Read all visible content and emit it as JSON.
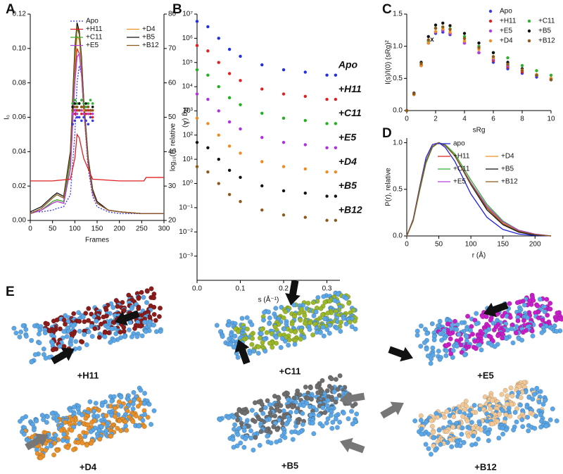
{
  "chart_data": [
    {
      "panel_label": "A",
      "type": "line",
      "xlabel": "Frames",
      "ylabel": "I₀",
      "y2label": "Rg (Å)",
      "x": [
        0,
        25,
        50,
        60,
        75,
        90,
        100,
        105,
        110,
        115,
        120,
        130,
        140,
        150,
        175,
        200,
        250,
        300
      ],
      "xlim": [
        0,
        300
      ],
      "xticks": [
        0,
        50,
        100,
        150,
        200,
        250,
        300
      ],
      "ylim": [
        0,
        0.12
      ],
      "yticks": [
        {
          "value": 0,
          "label": "0.00"
        },
        0.02,
        0.04,
        0.06,
        0.08,
        {
          "value": 0.1,
          "label": "0.10"
        },
        0.12
      ],
      "y2lim": [
        20,
        80
      ],
      "y2ticks": [
        20,
        30,
        40,
        50,
        60,
        70,
        80
      ],
      "legend": "top-right",
      "series": [
        {
          "name": "Apo",
          "color": "#3a3ae0",
          "dash": true,
          "values": [
            0.005,
            0.005,
            0.006,
            0.007,
            0.008,
            0.015,
            0.05,
            0.08,
            0.09,
            0.085,
            0.065,
            0.03,
            0.014,
            0.008,
            0.005,
            0.004,
            0.004,
            0.004
          ]
        },
        {
          "name": "+H11",
          "color": "#e02020",
          "values": [
            0.004,
            0.006,
            0.01,
            0.011,
            0.01,
            0.03,
            0.085,
            0.1,
            0.097,
            0.085,
            0.065,
            0.033,
            0.016,
            0.01,
            0.006,
            0.005,
            0.004,
            0.004
          ]
        },
        {
          "name": "+D4",
          "color": "#f09020",
          "values": [
            0.004,
            0.006,
            0.011,
            0.012,
            0.011,
            0.035,
            0.09,
            0.107,
            0.105,
            0.09,
            0.068,
            0.035,
            0.017,
            0.01,
            0.006,
            0.005,
            0.004,
            0.004
          ]
        },
        {
          "name": "+C11",
          "color": "#30b030",
          "values": [
            0.004,
            0.006,
            0.011,
            0.012,
            0.011,
            0.035,
            0.095,
            0.112,
            0.108,
            0.092,
            0.07,
            0.036,
            0.018,
            0.01,
            0.006,
            0.005,
            0.004,
            0.004
          ]
        },
        {
          "name": "+B5",
          "color": "#111111",
          "values": [
            0.005,
            0.008,
            0.014,
            0.016,
            0.014,
            0.04,
            0.1,
            0.115,
            0.11,
            0.095,
            0.07,
            0.036,
            0.018,
            0.011,
            0.006,
            0.005,
            0.004,
            0.004
          ]
        },
        {
          "name": "+E5",
          "color": "#b040e0",
          "values": [
            0.004,
            0.006,
            0.01,
            0.011,
            0.01,
            0.03,
            0.08,
            0.095,
            0.097,
            0.085,
            0.065,
            0.033,
            0.016,
            0.01,
            0.006,
            0.005,
            0.004,
            0.004
          ]
        },
        {
          "name": "+B12",
          "color": "#8b5a1a",
          "values": [
            0.004,
            0.007,
            0.013,
            0.015,
            0.013,
            0.038,
            0.097,
            0.113,
            0.108,
            0.093,
            0.069,
            0.035,
            0.017,
            0.01,
            0.006,
            0.005,
            0.004,
            0.004
          ]
        },
        {
          "name": "+H11",
          "color": "#e02020",
          "axis": "y2",
          "x": [
            0,
            50,
            90,
            100,
            105,
            110,
            120,
            140,
            200,
            255,
            260,
            300
          ],
          "values": [
            31.5,
            31.5,
            32,
            38,
            45,
            44,
            38,
            32,
            31.5,
            31.5,
            32.5,
            32.5
          ]
        },
        {
          "name": "Apo",
          "color": "#3a3ae0",
          "axis": "y2",
          "markers": true,
          "x": [
            95,
            100,
            105,
            110,
            115,
            120,
            125,
            130,
            135,
            140
          ],
          "values": [
            48,
            49,
            50,
            50,
            49,
            50,
            49,
            48,
            50,
            49
          ]
        },
        {
          "name": "+H11",
          "color": "#e02020",
          "axis": "y2",
          "markers": true,
          "x": [
            95,
            100,
            105,
            110,
            115,
            120,
            125,
            130,
            135,
            140
          ],
          "values": [
            52,
            51,
            52,
            52,
            51,
            52,
            51,
            52,
            51,
            50
          ]
        },
        {
          "name": "+D4",
          "color": "#f09020",
          "axis": "y2",
          "markers": true,
          "x": [
            95,
            100,
            105,
            110,
            115,
            120,
            125,
            130,
            135,
            140
          ],
          "values": [
            53,
            52,
            53,
            52,
            53,
            52,
            52,
            51,
            52,
            52
          ]
        },
        {
          "name": "+C11",
          "color": "#30b030",
          "axis": "y2",
          "markers": true,
          "x": [
            95,
            100,
            105,
            110,
            115,
            120,
            125,
            130,
            135,
            140
          ],
          "values": [
            54,
            55,
            54,
            54,
            55,
            54,
            53,
            54,
            55,
            54
          ]
        },
        {
          "name": "+B5",
          "color": "#111111",
          "axis": "y2",
          "markers": true,
          "x": [
            95,
            100,
            105,
            110,
            115,
            120,
            125,
            130,
            135,
            140
          ],
          "values": [
            53,
            54,
            53,
            54,
            53,
            53,
            54,
            53,
            52,
            53
          ]
        },
        {
          "name": "+E5",
          "color": "#b040e0",
          "axis": "y2",
          "markers": true,
          "x": [
            95,
            100,
            105,
            110,
            115,
            120,
            125,
            130,
            135,
            140
          ],
          "values": [
            51,
            52,
            51,
            52,
            52,
            51,
            52,
            51,
            52,
            51
          ]
        },
        {
          "name": "+B12",
          "color": "#8b5a1a",
          "axis": "y2",
          "markers": true,
          "x": [
            95,
            100,
            105,
            110,
            115,
            120,
            125,
            130,
            135,
            140
          ],
          "values": [
            52,
            53,
            53,
            52,
            53,
            53,
            52,
            53,
            52,
            52
          ]
        }
      ]
    },
    {
      "panel_label": "B",
      "type": "scatter",
      "xlabel": "s (Å⁻¹)",
      "ylabel": "log₁₀(I), relative",
      "log_y": true,
      "series_labels": true,
      "x": [
        0,
        0.025,
        0.05,
        0.075,
        0.1,
        0.15,
        0.2,
        0.25,
        0.3,
        0.32
      ],
      "xlim": [
        0,
        0.33
      ],
      "xticks": [
        {
          "value": 0,
          "label": "0.0"
        },
        0.1,
        0.2,
        0.3
      ],
      "ylim": [
        0.0001,
        10000000
      ],
      "yticks": [
        {
          "value": 10000000,
          "label": "10⁷"
        },
        {
          "value": 1000000,
          "label": "10⁶"
        },
        {
          "value": 100000,
          "label": "10⁵"
        },
        {
          "value": 10000,
          "label": "10⁴"
        },
        {
          "value": 1000,
          "label": "10³"
        },
        {
          "value": 100,
          "label": "10²"
        },
        {
          "value": 10,
          "label": "10¹"
        },
        {
          "value": 1,
          "label": "10⁰"
        },
        {
          "value": 0.1,
          "label": "10⁻¹"
        },
        {
          "value": 0.01,
          "label": "10⁻²"
        },
        {
          "value": 0.001,
          "label": "10⁻³"
        }
      ],
      "series": [
        {
          "name": "Apo",
          "color": "#2030e0",
          "values": [
            5000000,
            3000000,
            1000000,
            350000,
            180000,
            80000,
            50000,
            40000,
            30000,
            30000
          ]
        },
        {
          "name": "+H11",
          "color": "#e02020",
          "values": [
            500000,
            300000,
            100000,
            35000,
            18000,
            8000,
            5000,
            4000,
            3000,
            3000
          ]
        },
        {
          "name": "+C11",
          "color": "#20b020",
          "values": [
            50000,
            30000,
            10000,
            3500,
            1800,
            800,
            500,
            400,
            300,
            300
          ]
        },
        {
          "name": "+E5",
          "color": "#b030e0",
          "values": [
            5000,
            3000,
            1000,
            350,
            180,
            80,
            50,
            40,
            30,
            30
          ]
        },
        {
          "name": "+D4",
          "color": "#f08a20",
          "values": [
            500,
            300,
            100,
            35,
            18,
            8,
            5,
            4,
            3,
            3
          ]
        },
        {
          "name": "+B5",
          "color": "#111111",
          "values": [
            50,
            30,
            10,
            3.5,
            1.8,
            0.8,
            0.5,
            0.4,
            0.3,
            0.3
          ]
        },
        {
          "name": "+B12",
          "color": "#8b5a1a",
          "values": [
            5,
            3,
            1,
            0.35,
            0.18,
            0.08,
            0.05,
            0.04,
            0.03,
            0.03
          ]
        }
      ]
    },
    {
      "panel_label": "C",
      "type": "scatter",
      "xlabel": "sRg",
      "ylabel": "I(s)/I(0) (sRg)²",
      "legend": "top-right",
      "x": [
        0,
        0.5,
        1,
        1.5,
        2,
        2.5,
        3,
        4,
        5,
        6,
        7,
        8,
        9,
        10
      ],
      "xlim": [
        0,
        10
      ],
      "xticks": [
        0,
        2,
        4,
        6,
        8,
        10
      ],
      "ylim": [
        0,
        1.5
      ],
      "yticks": [
        {
          "value": 0,
          "label": "0.0"
        },
        0.5,
        {
          "value": 1,
          "label": "1.0"
        },
        1.5
      ],
      "annotations": [
        {
          "text": "x",
          "x": 1.75,
          "y": 1.1
        }
      ],
      "series": [
        {
          "name": "Apo",
          "color": "#3a3ae0",
          "values": [
            0,
            0.25,
            0.7,
            1.05,
            1.2,
            1.22,
            1.18,
            1.05,
            0.9,
            0.75,
            0.65,
            0.58,
            0.52,
            0.48
          ]
        },
        {
          "name": "+H11",
          "color": "#e02020",
          "values": [
            0,
            0.25,
            0.7,
            1.05,
            1.22,
            1.25,
            1.2,
            1.05,
            0.9,
            0.78,
            0.68,
            0.6,
            0.55,
            0.5
          ]
        },
        {
          "name": "+C11",
          "color": "#30b030",
          "values": [
            0,
            0.25,
            0.72,
            1.08,
            1.28,
            1.3,
            1.27,
            1.15,
            1,
            0.9,
            0.82,
            0.7,
            0.62,
            0.55
          ]
        },
        {
          "name": "+E5",
          "color": "#b040e0",
          "values": [
            0,
            0.25,
            0.7,
            1.05,
            1.22,
            1.25,
            1.2,
            1.05,
            0.9,
            0.8,
            0.7,
            0.62,
            0.55,
            0.5
          ]
        },
        {
          "name": "+B5",
          "color": "#111111",
          "values": [
            0,
            0.27,
            0.75,
            1.15,
            1.33,
            1.36,
            1.32,
            1.2,
            1.05,
            0.9,
            0.75,
            0.65,
            0.55,
            0.48
          ]
        },
        {
          "name": "+D4",
          "color": "#f09020",
          "values": [
            0,
            0.25,
            0.7,
            1.05,
            1.23,
            1.27,
            1.22,
            1.08,
            0.95,
            0.82,
            0.72,
            0.63,
            0.56,
            0.5
          ]
        },
        {
          "name": "+B12",
          "color": "#8b5a1a",
          "values": [
            0,
            0.26,
            0.73,
            1.1,
            1.28,
            1.3,
            1.26,
            1.12,
            0.98,
            0.84,
            0.72,
            0.62,
            0.55,
            0.48
          ]
        }
      ]
    },
    {
      "panel_label": "D",
      "type": "line",
      "xlabel": "r (Å)",
      "ylabel": "P(r), relative",
      "legend": "top-right",
      "x": [
        0,
        10,
        20,
        30,
        40,
        50,
        60,
        75,
        100,
        125,
        150,
        175,
        200,
        225
      ],
      "xlim": [
        0,
        225
      ],
      "xticks": [
        0,
        50,
        100,
        150,
        200
      ],
      "ylim": [
        0,
        1.05
      ],
      "yticks": [
        {
          "value": 0,
          "label": "0.0"
        },
        0.5,
        {
          "value": 1,
          "label": "1.0"
        }
      ],
      "series": [
        {
          "name": "apo",
          "color": "#2020e0",
          "values": [
            0,
            0.18,
            0.52,
            0.84,
            0.98,
            1,
            0.95,
            0.8,
            0.45,
            0.2,
            0.07,
            0.02,
            0.005,
            0
          ]
        },
        {
          "name": "+H11",
          "color": "#e02020",
          "values": [
            0,
            0.17,
            0.5,
            0.8,
            0.96,
            1,
            0.97,
            0.86,
            0.56,
            0.3,
            0.13,
            0.05,
            0.015,
            0
          ]
        },
        {
          "name": "+D4",
          "color": "#f09020",
          "values": [
            0,
            0.17,
            0.5,
            0.8,
            0.96,
            1,
            0.97,
            0.86,
            0.57,
            0.31,
            0.14,
            0.05,
            0.015,
            0
          ]
        },
        {
          "name": "+C11",
          "color": "#30b030",
          "values": [
            0,
            0.16,
            0.48,
            0.78,
            0.95,
            1,
            0.98,
            0.88,
            0.6,
            0.34,
            0.16,
            0.06,
            0.02,
            0
          ]
        },
        {
          "name": "+B5",
          "color": "#111111",
          "values": [
            0,
            0.17,
            0.5,
            0.8,
            0.96,
            1,
            0.97,
            0.86,
            0.55,
            0.28,
            0.12,
            0.04,
            0.01,
            0
          ]
        },
        {
          "name": "+E5",
          "color": "#b040e0",
          "values": [
            0,
            0.17,
            0.5,
            0.8,
            0.96,
            1,
            0.97,
            0.86,
            0.57,
            0.32,
            0.15,
            0.06,
            0.02,
            0
          ]
        },
        {
          "name": "+B12",
          "color": "#8b5a1a",
          "values": [
            0,
            0.17,
            0.5,
            0.8,
            0.96,
            1,
            0.97,
            0.86,
            0.56,
            0.3,
            0.13,
            0.05,
            0.015,
            0
          ]
        }
      ]
    }
  ],
  "models": {
    "panel_label": "E",
    "base_color": "#5aa6e6",
    "items": [
      {
        "label": "+H11",
        "color": "#8b1c1c"
      },
      {
        "label": "+C11",
        "color": "#9ab82a"
      },
      {
        "label": "+E5",
        "color": "#c81ec8"
      },
      {
        "label": "+D4",
        "color": "#e8902a"
      },
      {
        "label": "+B5",
        "color": "#6e6e6e"
      },
      {
        "label": "+B12",
        "color": "#f2c896"
      }
    ]
  }
}
